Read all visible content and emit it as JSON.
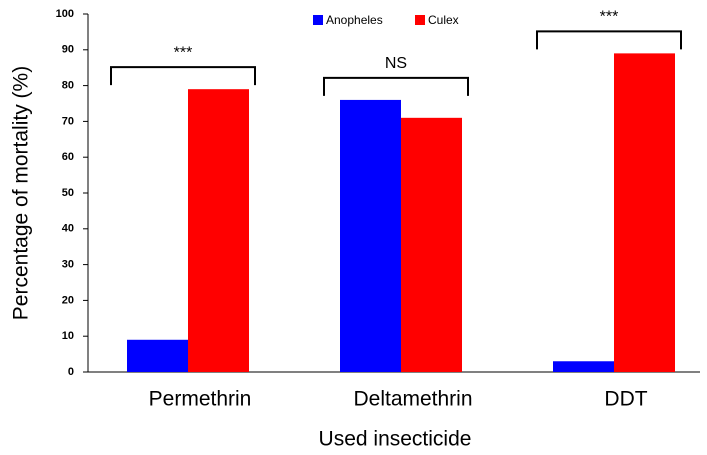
{
  "chart_data": {
    "type": "bar",
    "categories": [
      "Permethrin",
      "Deltamethrin",
      "DDT"
    ],
    "series": [
      {
        "name": "Anopheles",
        "color": "#0000ff",
        "values": [
          9,
          76,
          3
        ]
      },
      {
        "name": "Culex",
        "color": "#ff0000",
        "values": [
          79,
          71,
          89
        ]
      }
    ],
    "annotations": [
      "***",
      "NS",
      "***"
    ],
    "x_label": "Used insecticide",
    "y_label": "Percentage of mortality (%)",
    "ylim": [
      0,
      100
    ],
    "yticks": [
      0,
      10,
      20,
      30,
      40,
      50,
      60,
      70,
      80,
      90,
      100
    ],
    "legend": "top"
  }
}
